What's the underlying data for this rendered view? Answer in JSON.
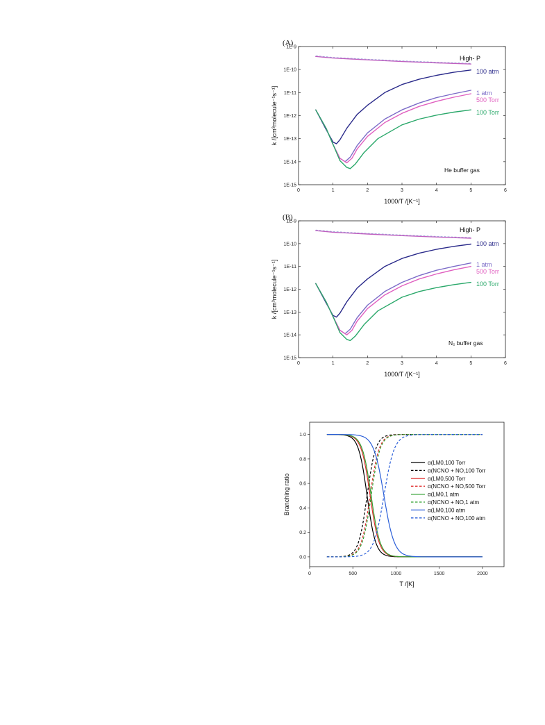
{
  "chart_data": [
    {
      "type": "line",
      "panel_label": "(A)",
      "xlabel": "1000/T  /[K⁻¹]",
      "ylabel": "k /[cm³molecule⁻¹s⁻¹]",
      "xlim": [
        0,
        6
      ],
      "ylim_log10": [
        -15,
        -9
      ],
      "y_scale": "log",
      "xticks": [
        "0",
        "1",
        "2",
        "3",
        "4",
        "5",
        "6"
      ],
      "yticks": [
        "1E-15",
        "1E-14",
        "1E-13",
        "1E-12",
        "1E-11",
        "1E-10",
        "1E-9"
      ],
      "annotation": "He buffer gas",
      "series": [
        {
          "name": "High- P",
          "color": "#c060c0",
          "x": [
            0.5,
            1,
            2,
            3,
            4,
            5
          ],
          "y_log10": [
            -9.43,
            -9.5,
            -9.58,
            -9.65,
            -9.71,
            -9.76
          ]
        },
        {
          "name": "100 atm",
          "color": "#2a2a8a",
          "x": [
            0.5,
            0.8,
            1.0,
            1.1,
            1.2,
            1.4,
            1.7,
            2.0,
            2.5,
            3.0,
            3.5,
            4.0,
            4.5,
            5.0
          ],
          "y_log10": [
            -11.75,
            -12.6,
            -13.15,
            -13.22,
            -13.05,
            -12.55,
            -11.95,
            -11.55,
            -11.0,
            -10.65,
            -10.42,
            -10.25,
            -10.12,
            -10.02
          ]
        },
        {
          "name": "1 atm",
          "color": "#7c6cc8",
          "x": [
            0.5,
            0.8,
            1.0,
            1.2,
            1.35,
            1.5,
            1.7,
            2.0,
            2.5,
            3.0,
            3.5,
            4.0,
            4.5,
            5.0
          ],
          "y_log10": [
            -11.75,
            -12.55,
            -13.25,
            -13.85,
            -14.0,
            -13.8,
            -13.3,
            -12.75,
            -12.15,
            -11.75,
            -11.45,
            -11.22,
            -11.05,
            -10.9
          ]
        },
        {
          "name": "500 Torr",
          "color": "#e060c0",
          "x": [
            0.5,
            0.8,
            1.0,
            1.2,
            1.4,
            1.55,
            1.7,
            2.0,
            2.5,
            3.0,
            3.5,
            4.0,
            4.5,
            5.0
          ],
          "y_log10": [
            -11.75,
            -12.55,
            -13.25,
            -13.85,
            -14.05,
            -13.85,
            -13.45,
            -12.9,
            -12.3,
            -11.9,
            -11.6,
            -11.38,
            -11.2,
            -11.05
          ]
        },
        {
          "name": "100 Torr",
          "color": "#2aa86a",
          "x": [
            0.5,
            0.8,
            1.0,
            1.2,
            1.4,
            1.5,
            1.65,
            1.9,
            2.3,
            3.0,
            3.5,
            4.0,
            4.5,
            5.0
          ],
          "y_log10": [
            -11.75,
            -12.55,
            -13.25,
            -13.95,
            -14.25,
            -14.3,
            -14.1,
            -13.6,
            -13.0,
            -12.4,
            -12.15,
            -11.98,
            -11.85,
            -11.75
          ]
        }
      ]
    },
    {
      "type": "line",
      "panel_label": "(B)",
      "xlabel": "1000/T  /[K⁻¹]",
      "ylabel": "k /[cm³molecule⁻¹s⁻¹]",
      "xlim": [
        0,
        6
      ],
      "ylim_log10": [
        -15,
        -9
      ],
      "y_scale": "log",
      "xticks": [
        "0",
        "1",
        "2",
        "3",
        "4",
        "5",
        "6"
      ],
      "yticks": [
        "1E-15",
        "1E-14",
        "1E-13",
        "1E-12",
        "1E-11",
        "1E-10",
        "1E-9"
      ],
      "annotation": "N₂ buffer gas",
      "series": [
        {
          "name": "High- P",
          "color": "#c060c0",
          "x": [
            0.5,
            1,
            2,
            3,
            4,
            5
          ],
          "y_log10": [
            -9.43,
            -9.5,
            -9.58,
            -9.65,
            -9.71,
            -9.76
          ]
        },
        {
          "name": "100 atm",
          "color": "#2a2a8a",
          "x": [
            0.5,
            0.8,
            1.0,
            1.1,
            1.2,
            1.4,
            1.7,
            2.0,
            2.5,
            3.0,
            3.5,
            4.0,
            4.5,
            5.0
          ],
          "y_log10": [
            -11.75,
            -12.6,
            -13.15,
            -13.22,
            -13.05,
            -12.55,
            -11.95,
            -11.55,
            -11.0,
            -10.65,
            -10.42,
            -10.25,
            -10.12,
            -10.02
          ]
        },
        {
          "name": "1 atm",
          "color": "#7c6cc8",
          "x": [
            0.5,
            0.8,
            1.0,
            1.2,
            1.35,
            1.5,
            1.7,
            2.0,
            2.5,
            3.0,
            3.5,
            4.0,
            4.5,
            5.0
          ],
          "y_log10": [
            -11.75,
            -12.55,
            -13.2,
            -13.8,
            -13.95,
            -13.75,
            -13.25,
            -12.7,
            -12.1,
            -11.7,
            -11.4,
            -11.17,
            -11.0,
            -10.85
          ]
        },
        {
          "name": "500 Torr",
          "color": "#e060c0",
          "x": [
            0.5,
            0.8,
            1.0,
            1.2,
            1.4,
            1.55,
            1.7,
            2.0,
            2.5,
            3.0,
            3.5,
            4.0,
            4.5,
            5.0
          ],
          "y_log10": [
            -11.75,
            -12.55,
            -13.2,
            -13.8,
            -14.0,
            -13.8,
            -13.4,
            -12.85,
            -12.25,
            -11.85,
            -11.55,
            -11.33,
            -11.15,
            -11.0
          ]
        },
        {
          "name": "100 Torr",
          "color": "#2aa86a",
          "x": [
            0.5,
            0.8,
            1.0,
            1.2,
            1.4,
            1.5,
            1.65,
            1.9,
            2.3,
            3.0,
            3.5,
            4.0,
            4.5,
            5.0
          ],
          "y_log10": [
            -11.75,
            -12.55,
            -13.2,
            -13.9,
            -14.2,
            -14.25,
            -14.05,
            -13.55,
            -12.95,
            -12.35,
            -12.1,
            -11.93,
            -11.8,
            -11.7
          ]
        }
      ]
    },
    {
      "type": "line",
      "xlabel": "T /[K]",
      "ylabel": "Branching ratio",
      "xlim": [
        0,
        2250
      ],
      "ylim": [
        -0.08,
        1.1
      ],
      "xticks": [
        0,
        500,
        1000,
        1500,
        2000
      ],
      "yticks": [
        0.0,
        0.2,
        0.4,
        0.6,
        0.8,
        1.0
      ],
      "legend_position": "right",
      "series": [
        {
          "name": "α(LM0,100 Torr",
          "color": "#000000",
          "dash": false,
          "x": [
            200,
            2000
          ],
          "midpoint": 665,
          "width": 50,
          "falling": true
        },
        {
          "name": "α(NCNO + NO,100 Torr",
          "color": "#000000",
          "dash": true,
          "x": [
            200,
            2000
          ],
          "midpoint": 665,
          "width": 50,
          "falling": false
        },
        {
          "name": "α(LM0,500 Torr",
          "color": "#e03030",
          "dash": false,
          "x": [
            200,
            2000
          ],
          "midpoint": 700,
          "width": 52,
          "falling": true
        },
        {
          "name": "α(NCNO + NO,500 Torr",
          "color": "#e03030",
          "dash": true,
          "x": [
            200,
            2000
          ],
          "midpoint": 700,
          "width": 52,
          "falling": false
        },
        {
          "name": "α(LM0,1 atm",
          "color": "#30a030",
          "dash": false,
          "x": [
            200,
            2000
          ],
          "midpoint": 712,
          "width": 52,
          "falling": true
        },
        {
          "name": "α(NCNO + NO,1 atm",
          "color": "#30a030",
          "dash": true,
          "x": [
            200,
            2000
          ],
          "midpoint": 712,
          "width": 52,
          "falling": false
        },
        {
          "name": "α(LM0,100 atm",
          "color": "#2a5ed8",
          "dash": false,
          "x": [
            200,
            2000
          ],
          "midpoint": 860,
          "width": 60,
          "falling": true
        },
        {
          "name": "α(NCNO + NO,100 atm",
          "color": "#2a5ed8",
          "dash": true,
          "x": [
            200,
            2000
          ],
          "midpoint": 860,
          "width": 60,
          "falling": false
        }
      ]
    }
  ]
}
